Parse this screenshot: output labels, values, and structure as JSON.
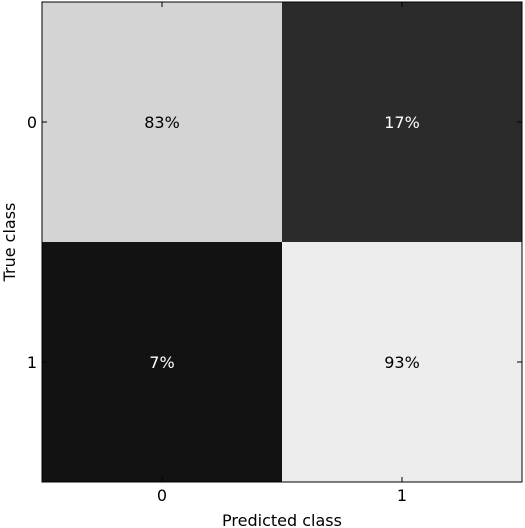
{
  "chart_data": {
    "type": "heatmap",
    "title": "",
    "xlabel": "Predicted class",
    "ylabel": "True class",
    "x_categories": [
      "0",
      "1"
    ],
    "y_categories": [
      "0",
      "1"
    ],
    "values": [
      [
        83,
        17
      ],
      [
        7,
        93
      ]
    ],
    "cell_labels": [
      [
        "83%",
        "17%"
      ],
      [
        "7%",
        "93%"
      ]
    ],
    "value_range": [
      0,
      100
    ],
    "colormap": "gray",
    "colors": {
      "low": "#000000",
      "high": "#ffffff",
      "axis": "#000000"
    },
    "grid": false,
    "legend": "none"
  }
}
